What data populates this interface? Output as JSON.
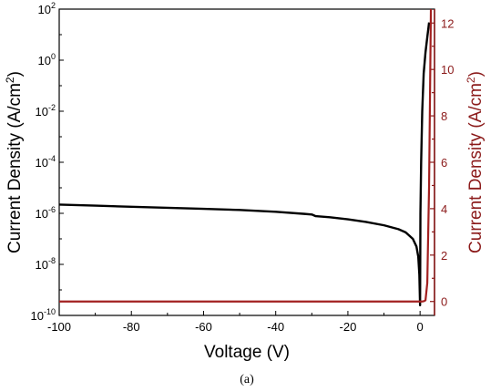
{
  "colors": {
    "left_axis": "#000000",
    "right_axis": "#8b1a1a",
    "log_series": "#000000",
    "linear_series": "#a32020"
  },
  "chart_data": {
    "type": "line",
    "panel_label": "(a)",
    "xlabel": "Voltage (V)",
    "xlim": [
      -100,
      4
    ],
    "x_ticks": [
      -100,
      -80,
      -60,
      -40,
      -20,
      0
    ],
    "x_tick_labels": [
      "-100",
      "-80",
      "-60",
      "-40",
      "-20",
      "0"
    ],
    "y_left": {
      "label": "Current Density (A/cm²)",
      "label_text": "Current Density (A/cm",
      "label_sup": "2",
      "label_end": ")",
      "scale": "log",
      "lim": [
        1e-10,
        100
      ],
      "ticks": [
        {
          "value": 1e-10,
          "base": "10",
          "exp": "-10"
        },
        {
          "value": 1e-08,
          "base": "10",
          "exp": "-8"
        },
        {
          "value": 1e-06,
          "base": "10",
          "exp": "-6"
        },
        {
          "value": 0.0001,
          "base": "10",
          "exp": "-4"
        },
        {
          "value": 0.01,
          "base": "10",
          "exp": "-2"
        },
        {
          "value": 1,
          "base": "10",
          "exp": "0"
        },
        {
          "value": 100,
          "base": "10",
          "exp": "2"
        }
      ]
    },
    "y_right": {
      "label": "Current Density (A/cm²)",
      "label_text": "Current Density (A/cm",
      "label_sup": "2",
      "label_end": ")",
      "scale": "linear",
      "lim": [
        -0.6,
        12.6
      ],
      "ticks": [
        0,
        2,
        4,
        6,
        8,
        10,
        12
      ],
      "tick_labels": [
        "0",
        "2",
        "4",
        "6",
        "8",
        "10",
        "12"
      ]
    },
    "series": [
      {
        "axis": "left",
        "x": [
          -100,
          -90,
          -80,
          -70,
          -60,
          -50,
          -40,
          -32,
          -30,
          -29,
          -25,
          -20,
          -15,
          -10,
          -6,
          -4,
          -2,
          -1,
          -0.5,
          -0.2,
          0,
          0.1,
          0.3,
          0.6,
          1.0,
          1.5,
          2.0,
          2.5
        ],
        "y": [
          2.2e-06,
          2e-06,
          1.8e-06,
          1.65e-06,
          1.5e-06,
          1.35e-06,
          1.15e-06,
          9.5e-07,
          9e-07,
          7.8e-07,
          7e-07,
          5.8e-07,
          4.6e-07,
          3.4e-07,
          2.4e-07,
          1.8e-07,
          1e-07,
          5e-08,
          2e-08,
          4e-09,
          2.5e-10,
          1e-06,
          0.0001,
          0.01,
          0.3,
          2.0,
          8.0,
          30.0
        ]
      },
      {
        "axis": "right",
        "x": [
          -100,
          0,
          0.5,
          1.0,
          1.5,
          2.0,
          2.5,
          3.0
        ],
        "y": [
          0,
          0,
          0,
          0.01,
          0.05,
          0.8,
          5.0,
          12.6
        ]
      }
    ]
  }
}
